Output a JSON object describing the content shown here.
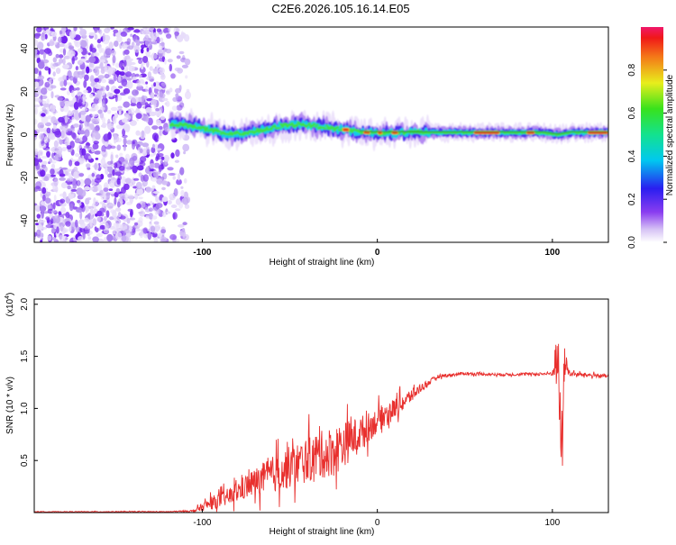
{
  "title": "C2E6.2026.105.16.14.E05",
  "colors": {
    "snr_line": "#e8302e",
    "spectro_ridge": "#2f9a2f",
    "axis": "#000000"
  },
  "chart_data": [
    {
      "type": "heatmap",
      "name": "spectrogram",
      "xlabel": "Height of straight line (km)",
      "ylabel": "Frequency (Hz)",
      "xlim": [
        -196,
        132
      ],
      "ylim": [
        -50,
        50
      ],
      "x_ticks": [
        -100,
        0,
        100
      ],
      "y_ticks": [
        -40,
        -20,
        0,
        20,
        40
      ],
      "noise_region_x": [
        -196,
        -108
      ],
      "signal_track": {
        "x": [
          -118,
          -105,
          -95,
          -85,
          -75,
          -65,
          -55,
          -45,
          -35,
          -25,
          -15,
          -5,
          5,
          15,
          25,
          40,
          60,
          80,
          95,
          103,
          110,
          132
        ],
        "freq": [
          5,
          4,
          2,
          0,
          1,
          2,
          4,
          5,
          4,
          3,
          2,
          1,
          1,
          1,
          1,
          1,
          1,
          1,
          1,
          0,
          1,
          1
        ]
      },
      "colorbar": {
        "label": "Normalized spectral amplitude",
        "ticks": [
          "0.0",
          "0.2",
          "0.4",
          "0.6",
          "0.8"
        ],
        "range": [
          0,
          1
        ]
      }
    },
    {
      "type": "line",
      "name": "snr",
      "xlabel": "Height of straight line (km)",
      "ylabel": "SNR (10 * v/v)",
      "exponent_label": "(x10",
      "exponent_power": "4",
      "exponent_close": ")",
      "xlim": [
        -196,
        132
      ],
      "ylim": [
        0,
        20500
      ],
      "x_ticks": [
        -100,
        0,
        100
      ],
      "y_ticks": [
        "0.5",
        "1.0",
        "1.5",
        "2.0"
      ],
      "y_tick_values": [
        5000,
        10000,
        15000,
        20000
      ],
      "series": [
        {
          "name": "SNR",
          "x": [
            -196,
            -120,
            -105,
            -95,
            -85,
            -75,
            -65,
            -55,
            -45,
            -35,
            -25,
            -15,
            -5,
            5,
            15,
            25,
            35,
            50,
            70,
            90,
            100,
            103,
            105,
            107,
            110,
            132
          ],
          "y": [
            80,
            80,
            150,
            900,
            1500,
            2500,
            3300,
            4000,
            4700,
            5400,
            5900,
            7000,
            8200,
            9500,
            10600,
            12000,
            13100,
            13350,
            13250,
            13300,
            13350,
            15500,
            6000,
            14500,
            13300,
            13100
          ],
          "spread": [
            50,
            60,
            150,
            900,
            1200,
            1700,
            2200,
            2800,
            3000,
            3200,
            3500,
            2800,
            2000,
            1500,
            1200,
            600,
            250,
            200,
            200,
            200,
            300,
            4000,
            6000,
            2000,
            300,
            250
          ]
        }
      ]
    }
  ]
}
